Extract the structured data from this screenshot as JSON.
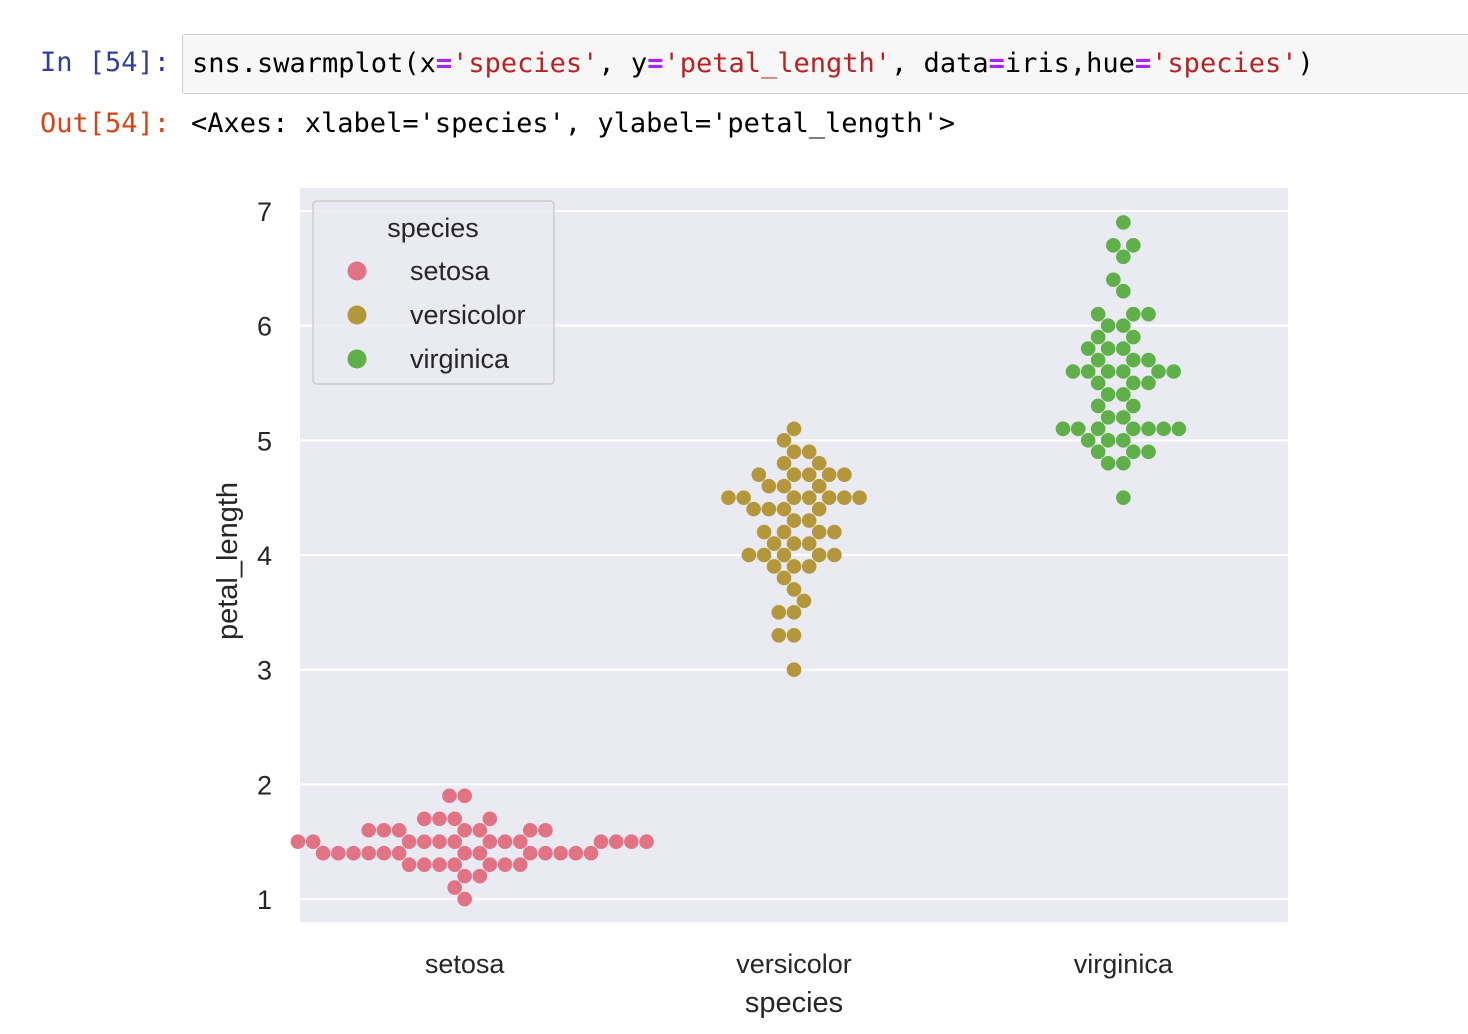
{
  "cell": {
    "in_prompt": "In [54]:",
    "out_prompt": "Out[54]:",
    "code_tokens": [
      {
        "t": "sns.swarmplot(x",
        "c": ""
      },
      {
        "t": "=",
        "c": "op"
      },
      {
        "t": "'species'",
        "c": "str"
      },
      {
        "t": ", y",
        "c": ""
      },
      {
        "t": "=",
        "c": "op"
      },
      {
        "t": "'petal_length'",
        "c": "str"
      },
      {
        "t": ", data",
        "c": ""
      },
      {
        "t": "=",
        "c": "op"
      },
      {
        "t": "iris,hue",
        "c": ""
      },
      {
        "t": "=",
        "c": "op"
      },
      {
        "t": "'species'",
        "c": "str"
      },
      {
        "t": ")",
        "c": ""
      }
    ],
    "output_text": "<Axes: xlabel='species', ylabel='petal_length'>"
  },
  "colors": {
    "background": "#eaeaf2",
    "grid": "#ffffff",
    "setosa": "#e27385",
    "versicolor": "#b5973b",
    "virginica": "#60b04a"
  },
  "chart_data": {
    "type": "scatter",
    "subtype": "swarm",
    "xlabel": "species",
    "ylabel": "petal_length",
    "categories": [
      "setosa",
      "versicolor",
      "virginica"
    ],
    "ylim": [
      0.8,
      7.2
    ],
    "yticks": [
      1,
      2,
      3,
      4,
      5,
      6,
      7
    ],
    "grid": true,
    "legend": {
      "title": "species",
      "placement": "upper-left",
      "entries": [
        "setosa",
        "versicolor",
        "virginica"
      ]
    },
    "series": [
      {
        "name": "setosa",
        "category": "setosa",
        "values": [
          1.4,
          1.4,
          1.3,
          1.5,
          1.4,
          1.7,
          1.4,
          1.5,
          1.4,
          1.5,
          1.5,
          1.6,
          1.4,
          1.1,
          1.2,
          1.5,
          1.3,
          1.4,
          1.7,
          1.5,
          1.7,
          1.5,
          1.0,
          1.7,
          1.9,
          1.6,
          1.6,
          1.5,
          1.4,
          1.6,
          1.6,
          1.5,
          1.5,
          1.4,
          1.5,
          1.2,
          1.3,
          1.4,
          1.3,
          1.5,
          1.3,
          1.3,
          1.3,
          1.6,
          1.9,
          1.4,
          1.6,
          1.4,
          1.5,
          1.4
        ]
      },
      {
        "name": "versicolor",
        "category": "versicolor",
        "values": [
          4.7,
          4.5,
          4.9,
          4.0,
          4.6,
          4.5,
          4.7,
          3.3,
          4.6,
          3.9,
          3.5,
          4.2,
          4.0,
          4.7,
          3.6,
          4.4,
          4.5,
          4.1,
          4.5,
          3.9,
          4.8,
          4.0,
          4.9,
          4.7,
          4.3,
          4.4,
          4.8,
          5.0,
          4.5,
          3.5,
          3.8,
          3.7,
          3.9,
          5.1,
          4.5,
          4.5,
          4.7,
          4.4,
          4.1,
          4.0,
          4.4,
          4.6,
          4.0,
          3.3,
          4.2,
          4.2,
          4.2,
          4.3,
          3.0,
          4.1
        ]
      },
      {
        "name": "virginica",
        "category": "virginica",
        "values": [
          6.0,
          5.1,
          5.9,
          5.6,
          5.8,
          6.6,
          4.5,
          6.3,
          5.8,
          6.1,
          5.1,
          5.3,
          5.5,
          5.0,
          5.1,
          5.3,
          5.5,
          6.7,
          6.9,
          5.0,
          5.7,
          4.9,
          6.7,
          4.9,
          5.7,
          6.0,
          4.8,
          4.9,
          5.6,
          5.8,
          6.1,
          6.4,
          5.6,
          5.1,
          5.6,
          6.1,
          5.6,
          5.5,
          4.8,
          5.4,
          5.6,
          5.1,
          5.1,
          5.9,
          5.7,
          5.2,
          5.0,
          5.2,
          5.4,
          5.1
        ]
      }
    ]
  }
}
